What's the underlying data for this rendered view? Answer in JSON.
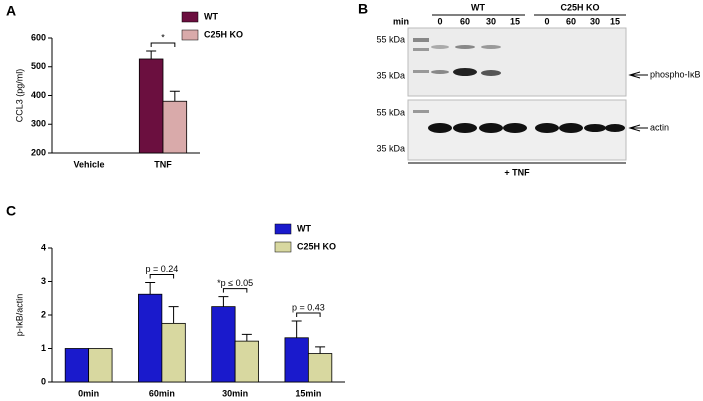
{
  "chart_data": [
    {
      "type": "bar",
      "panel": "A",
      "ylabel": "CCL3 (pg/ml)",
      "categories": [
        "Vehicle",
        "TNF"
      ],
      "series": [
        {
          "name": "WT",
          "color": "#6b0f3f",
          "values": [
            null,
            527
          ],
          "errors": [
            null,
            28
          ]
        },
        {
          "name": "C25H KO",
          "color": "#d9aaaa",
          "values": [
            null,
            380
          ],
          "errors": [
            null,
            35
          ]
        }
      ],
      "annotations": [
        "*"
      ],
      "ylim": [
        200,
        600
      ],
      "yticks": [
        200,
        300,
        400,
        500,
        600
      ]
    },
    {
      "type": "bar",
      "panel": "C",
      "ylabel": "p-IκB/actin",
      "categories": [
        "0min",
        "60min",
        "30min",
        "15min"
      ],
      "series": [
        {
          "name": "WT",
          "color": "#1a1acc",
          "values": [
            1,
            2.62,
            2.25,
            1.32
          ],
          "errors": [
            0,
            0.35,
            0.3,
            0.5
          ]
        },
        {
          "name": "C25H KO",
          "color": "#d8d8a0",
          "values": [
            1,
            1.75,
            1.22,
            0.85
          ],
          "errors": [
            0,
            0.5,
            0.2,
            0.2
          ]
        }
      ],
      "annotations": [
        "p = 0.24",
        "*p ≤ 0.05",
        "p = 0.43"
      ],
      "ylim": [
        0,
        4
      ],
      "yticks": [
        0,
        1,
        2,
        3,
        4
      ]
    }
  ],
  "blot": {
    "panel": "B",
    "min_label": "min",
    "groups": [
      "WT",
      "C25H KO"
    ],
    "lanes": [
      "0",
      "60",
      "30",
      "15",
      "0",
      "60",
      "30",
      "15"
    ],
    "upper": {
      "markers": [
        "55 kDa",
        "35 kDa"
      ],
      "band": "phospho-IκB"
    },
    "lower": {
      "markers": [
        "55 kDa",
        "35 kDa"
      ],
      "band": "actin"
    },
    "treatment": "+ TNF"
  }
}
